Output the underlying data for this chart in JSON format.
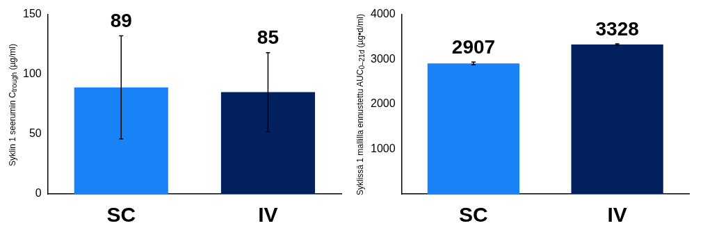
{
  "chart_data": [
    {
      "type": "bar",
      "ylabel": "Syklin 1 seerumin C$_{trough}$ (µg/ml)",
      "categories": [
        "SC",
        "IV"
      ],
      "values": [
        89,
        85
      ],
      "colors": [
        "#1a82f7",
        "#03215f"
      ],
      "errors": [
        [
          46,
          132
        ],
        [
          52,
          118
        ]
      ],
      "ylim": [
        0,
        150
      ],
      "yticks": [
        0,
        50,
        100,
        150
      ],
      "data_labels": true,
      "grid": false,
      "legend": false
    },
    {
      "type": "bar",
      "ylabel": "Syklissä 1 mallilla ennustettu AUC$_{0–21d}$ (µg•d/ml)",
      "categories": [
        "SC",
        "IV"
      ],
      "values": [
        2907,
        3328
      ],
      "colors": [
        "#1a82f7",
        "#03215f"
      ],
      "errors": [
        30,
        15
      ],
      "ylim": [
        0,
        4000
      ],
      "yticks": [
        1000,
        2000,
        3000,
        4000
      ],
      "data_labels": true,
      "grid": false,
      "legend": false
    }
  ]
}
